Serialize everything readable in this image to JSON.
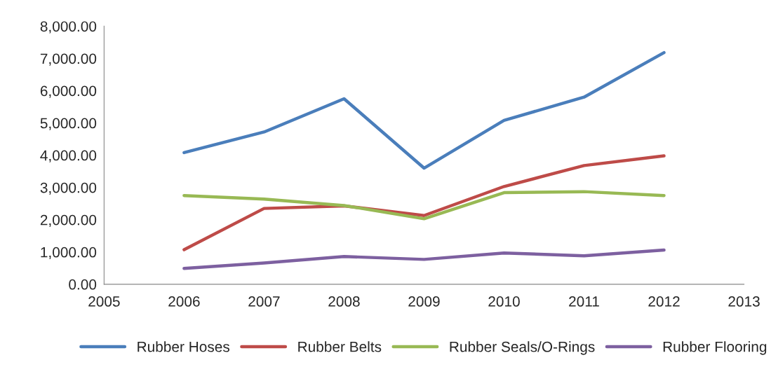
{
  "chart_data": {
    "type": "line",
    "x": [
      2006,
      2007,
      2008,
      2009,
      2010,
      2011,
      2012
    ],
    "series": [
      {
        "name": "Rubber Hoses",
        "color": "#4a7ebb",
        "values": [
          4080,
          4720,
          5750,
          3600,
          5080,
          5800,
          7180
        ]
      },
      {
        "name": "Rubber Belts",
        "color": "#be4b48",
        "values": [
          1070,
          2350,
          2430,
          2130,
          3030,
          3680,
          3980
        ]
      },
      {
        "name": "Rubber Seals/O-Rings",
        "color": "#98b954",
        "values": [
          2750,
          2640,
          2440,
          2030,
          2840,
          2870,
          2750
        ]
      },
      {
        "name": "Rubber Flooring",
        "color": "#7d60a0",
        "values": [
          490,
          660,
          860,
          770,
          970,
          880,
          1060
        ]
      }
    ],
    "xlim": [
      2005,
      2013
    ],
    "xticks": [
      2005,
      2006,
      2007,
      2008,
      2009,
      2010,
      2011,
      2012,
      2013
    ],
    "ylim": [
      0,
      8000
    ],
    "yticks": [
      {
        "value": 0,
        "label": "0.00"
      },
      {
        "value": 1000,
        "label": "1,000.00"
      },
      {
        "value": 2000,
        "label": "2,000.00"
      },
      {
        "value": 3000,
        "label": "3,000.00"
      },
      {
        "value": 4000,
        "label": "4,000.00"
      },
      {
        "value": 5000,
        "label": "5,000.00"
      },
      {
        "value": 6000,
        "label": "6,000.00"
      },
      {
        "value": 7000,
        "label": "7,000.00"
      },
      {
        "value": 8000,
        "label": "8,000.00"
      }
    ],
    "legend": "bottom",
    "marker": "none",
    "line_style": "solid"
  }
}
